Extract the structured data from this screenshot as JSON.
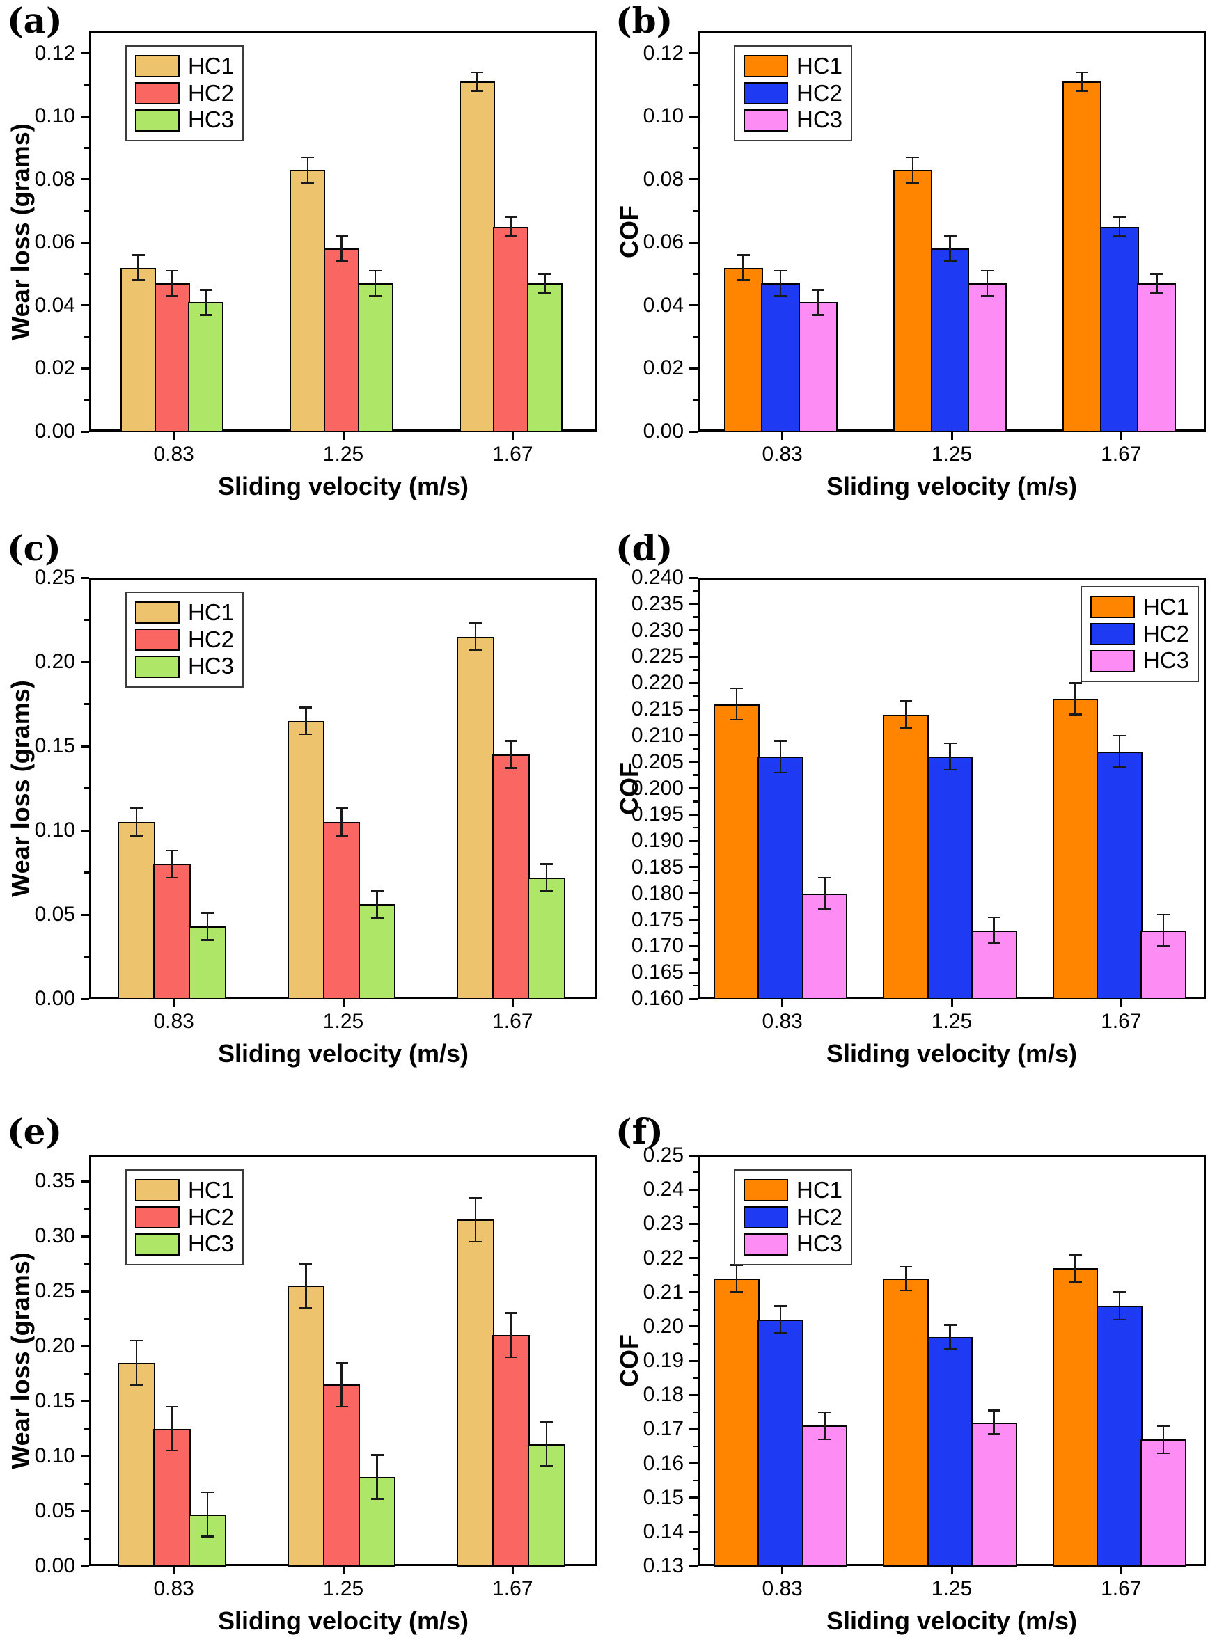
{
  "figure_background": "#ffffff",
  "palette": {
    "wear_loss_charts": {
      "HC1": "#EEC36E",
      "HC2": "#FA6661",
      "HC3": "#AEE768"
    },
    "cof_charts": {
      "HC1": "#FF8400",
      "HC2": "#1E3AF2",
      "HC3": "#FD8CF5"
    },
    "error_bar": "#1a1a1a",
    "axis": "#000000"
  },
  "chart_data": [
    {
      "panel_label": "(a)",
      "type": "bar",
      "title": "",
      "xlabel": "Sliding velocity (m/s)",
      "ylabel": "Wear loss (grams)",
      "categories": [
        "0.83",
        "1.25",
        "1.67"
      ],
      "series": [
        {
          "name": "HC1",
          "color": "#EEC36E",
          "values": [
            0.052,
            0.083,
            0.111
          ],
          "errors": [
            0.004,
            0.004,
            0.003
          ]
        },
        {
          "name": "HC2",
          "color": "#FA6661",
          "values": [
            0.047,
            0.058,
            0.065
          ],
          "errors": [
            0.004,
            0.004,
            0.003
          ]
        },
        {
          "name": "HC3",
          "color": "#AEE768",
          "values": [
            0.041,
            0.047,
            0.047
          ],
          "errors": [
            0.004,
            0.004,
            0.003
          ]
        }
      ],
      "ylim": [
        0,
        0.127
      ],
      "yticks": [
        0.0,
        0.02,
        0.04,
        0.06,
        0.08,
        0.1,
        0.12
      ],
      "ytick_labels": [
        "0.00",
        "0.02",
        "0.04",
        "0.06",
        "0.08",
        "0.10",
        "0.12"
      ],
      "minor_divisions": 2,
      "legend_position": "top-left",
      "grid": false
    },
    {
      "panel_label": "(b)",
      "type": "bar",
      "title": "",
      "xlabel": "Sliding velocity (m/s)",
      "ylabel": "COF",
      "categories": [
        "0.83",
        "1.25",
        "1.67"
      ],
      "series": [
        {
          "name": "HC1",
          "color": "#FF8400",
          "values": [
            0.052,
            0.083,
            0.111
          ],
          "errors": [
            0.004,
            0.004,
            0.003
          ]
        },
        {
          "name": "HC2",
          "color": "#1E3AF2",
          "values": [
            0.047,
            0.058,
            0.065
          ],
          "errors": [
            0.004,
            0.004,
            0.003
          ]
        },
        {
          "name": "HC3",
          "color": "#FD8CF5",
          "values": [
            0.041,
            0.047,
            0.047
          ],
          "errors": [
            0.004,
            0.004,
            0.003
          ]
        }
      ],
      "ylim": [
        0,
        0.127
      ],
      "yticks": [
        0.0,
        0.02,
        0.04,
        0.06,
        0.08,
        0.1,
        0.12
      ],
      "ytick_labels": [
        "0.00",
        "0.02",
        "0.04",
        "0.06",
        "0.08",
        "0.10",
        "0.12"
      ],
      "minor_divisions": 2,
      "legend_position": "top-left",
      "grid": false
    },
    {
      "panel_label": "(c)",
      "type": "bar",
      "title": "",
      "xlabel": "Sliding velocity (m/s)",
      "ylabel": "Wear loss (grams)",
      "categories": [
        "0.83",
        "1.25",
        "1.67"
      ],
      "series": [
        {
          "name": "HC1",
          "color": "#EEC36E",
          "values": [
            0.105,
            0.165,
            0.215
          ],
          "errors": [
            0.008,
            0.008,
            0.008
          ]
        },
        {
          "name": "HC2",
          "color": "#FA6661",
          "values": [
            0.08,
            0.105,
            0.145
          ],
          "errors": [
            0.008,
            0.008,
            0.008
          ]
        },
        {
          "name": "HC3",
          "color": "#AEE768",
          "values": [
            0.043,
            0.056,
            0.072
          ],
          "errors": [
            0.008,
            0.008,
            0.008
          ]
        }
      ],
      "ylim": [
        0,
        0.25
      ],
      "yticks": [
        0.0,
        0.05,
        0.1,
        0.15,
        0.2,
        0.25
      ],
      "ytick_labels": [
        "0.00",
        "0.05",
        "0.10",
        "0.15",
        "0.20",
        "0.25"
      ],
      "minor_divisions": 2,
      "legend_position": "top-left",
      "grid": false
    },
    {
      "panel_label": "(d)",
      "type": "bar",
      "title": "",
      "xlabel": "Sliding velocity (m/s)",
      "ylabel": "COF",
      "categories": [
        "0.83",
        "1.25",
        "1.67"
      ],
      "series": [
        {
          "name": "HC1",
          "color": "#FF8400",
          "values": [
            0.216,
            0.214,
            0.217
          ],
          "errors": [
            0.003,
            0.0025,
            0.003
          ]
        },
        {
          "name": "HC2",
          "color": "#1E3AF2",
          "values": [
            0.206,
            0.206,
            0.207
          ],
          "errors": [
            0.003,
            0.0025,
            0.003
          ]
        },
        {
          "name": "HC3",
          "color": "#FD8CF5",
          "values": [
            0.18,
            0.173,
            0.173
          ],
          "errors": [
            0.003,
            0.0025,
            0.003
          ]
        }
      ],
      "ylim": [
        0.16,
        0.24
      ],
      "yticks": [
        0.16,
        0.165,
        0.17,
        0.175,
        0.18,
        0.185,
        0.19,
        0.195,
        0.2,
        0.205,
        0.21,
        0.215,
        0.22,
        0.225,
        0.23,
        0.235,
        0.24
      ],
      "ytick_labels": [
        "0.160",
        "0.165",
        "0.170",
        "0.175",
        "0.180",
        "0.185",
        "0.190",
        "0.195",
        "0.200",
        "0.205",
        "0.210",
        "0.215",
        "0.220",
        "0.225",
        "0.230",
        "0.235",
        "0.240"
      ],
      "minor_divisions": 2,
      "legend_position": "top-right",
      "grid": false
    },
    {
      "panel_label": "(e)",
      "type": "bar",
      "title": "",
      "xlabel": "Sliding velocity (m/s)",
      "ylabel": "Wear loss (grams)",
      "categories": [
        "0.83",
        "1.25",
        "1.67"
      ],
      "series": [
        {
          "name": "HC1",
          "color": "#EEC36E",
          "values": [
            0.185,
            0.255,
            0.315
          ],
          "errors": [
            0.02,
            0.02,
            0.02
          ]
        },
        {
          "name": "HC2",
          "color": "#FA6661",
          "values": [
            0.125,
            0.165,
            0.21
          ],
          "errors": [
            0.02,
            0.02,
            0.02
          ]
        },
        {
          "name": "HC3",
          "color": "#AEE768",
          "values": [
            0.047,
            0.081,
            0.111
          ],
          "errors": [
            0.02,
            0.02,
            0.02
          ]
        }
      ],
      "ylim": [
        0,
        0.3735
      ],
      "yticks": [
        0.0,
        0.05,
        0.1,
        0.15,
        0.2,
        0.25,
        0.3,
        0.35
      ],
      "ytick_labels": [
        "0.00",
        "0.05",
        "0.10",
        "0.15",
        "0.20",
        "0.25",
        "0.30",
        "0.35"
      ],
      "minor_divisions": 2,
      "legend_position": "top-left",
      "grid": false
    },
    {
      "panel_label": "(f)",
      "type": "bar",
      "title": "",
      "xlabel": "Sliding velocity (m/s)",
      "ylabel": "COF",
      "categories": [
        "0.83",
        "1.25",
        "1.67"
      ],
      "series": [
        {
          "name": "HC1",
          "color": "#FF8400",
          "values": [
            0.214,
            0.214,
            0.217
          ],
          "errors": [
            0.004,
            0.0035,
            0.004
          ]
        },
        {
          "name": "HC2",
          "color": "#1E3AF2",
          "values": [
            0.202,
            0.197,
            0.206
          ],
          "errors": [
            0.004,
            0.0035,
            0.004
          ]
        },
        {
          "name": "HC3",
          "color": "#FD8CF5",
          "values": [
            0.171,
            0.172,
            0.167
          ],
          "errors": [
            0.004,
            0.0035,
            0.004
          ]
        }
      ],
      "ylim": [
        0.13,
        0.25
      ],
      "yticks": [
        0.13,
        0.14,
        0.15,
        0.16,
        0.17,
        0.18,
        0.19,
        0.2,
        0.21,
        0.22,
        0.23,
        0.24,
        0.25
      ],
      "ytick_labels": [
        "0.13",
        "0.14",
        "0.15",
        "0.16",
        "0.17",
        "0.18",
        "0.19",
        "0.20",
        "0.21",
        "0.22",
        "0.23",
        "0.24",
        "0.25"
      ],
      "minor_divisions": 2,
      "legend_position": "top-left",
      "grid": false
    }
  ]
}
